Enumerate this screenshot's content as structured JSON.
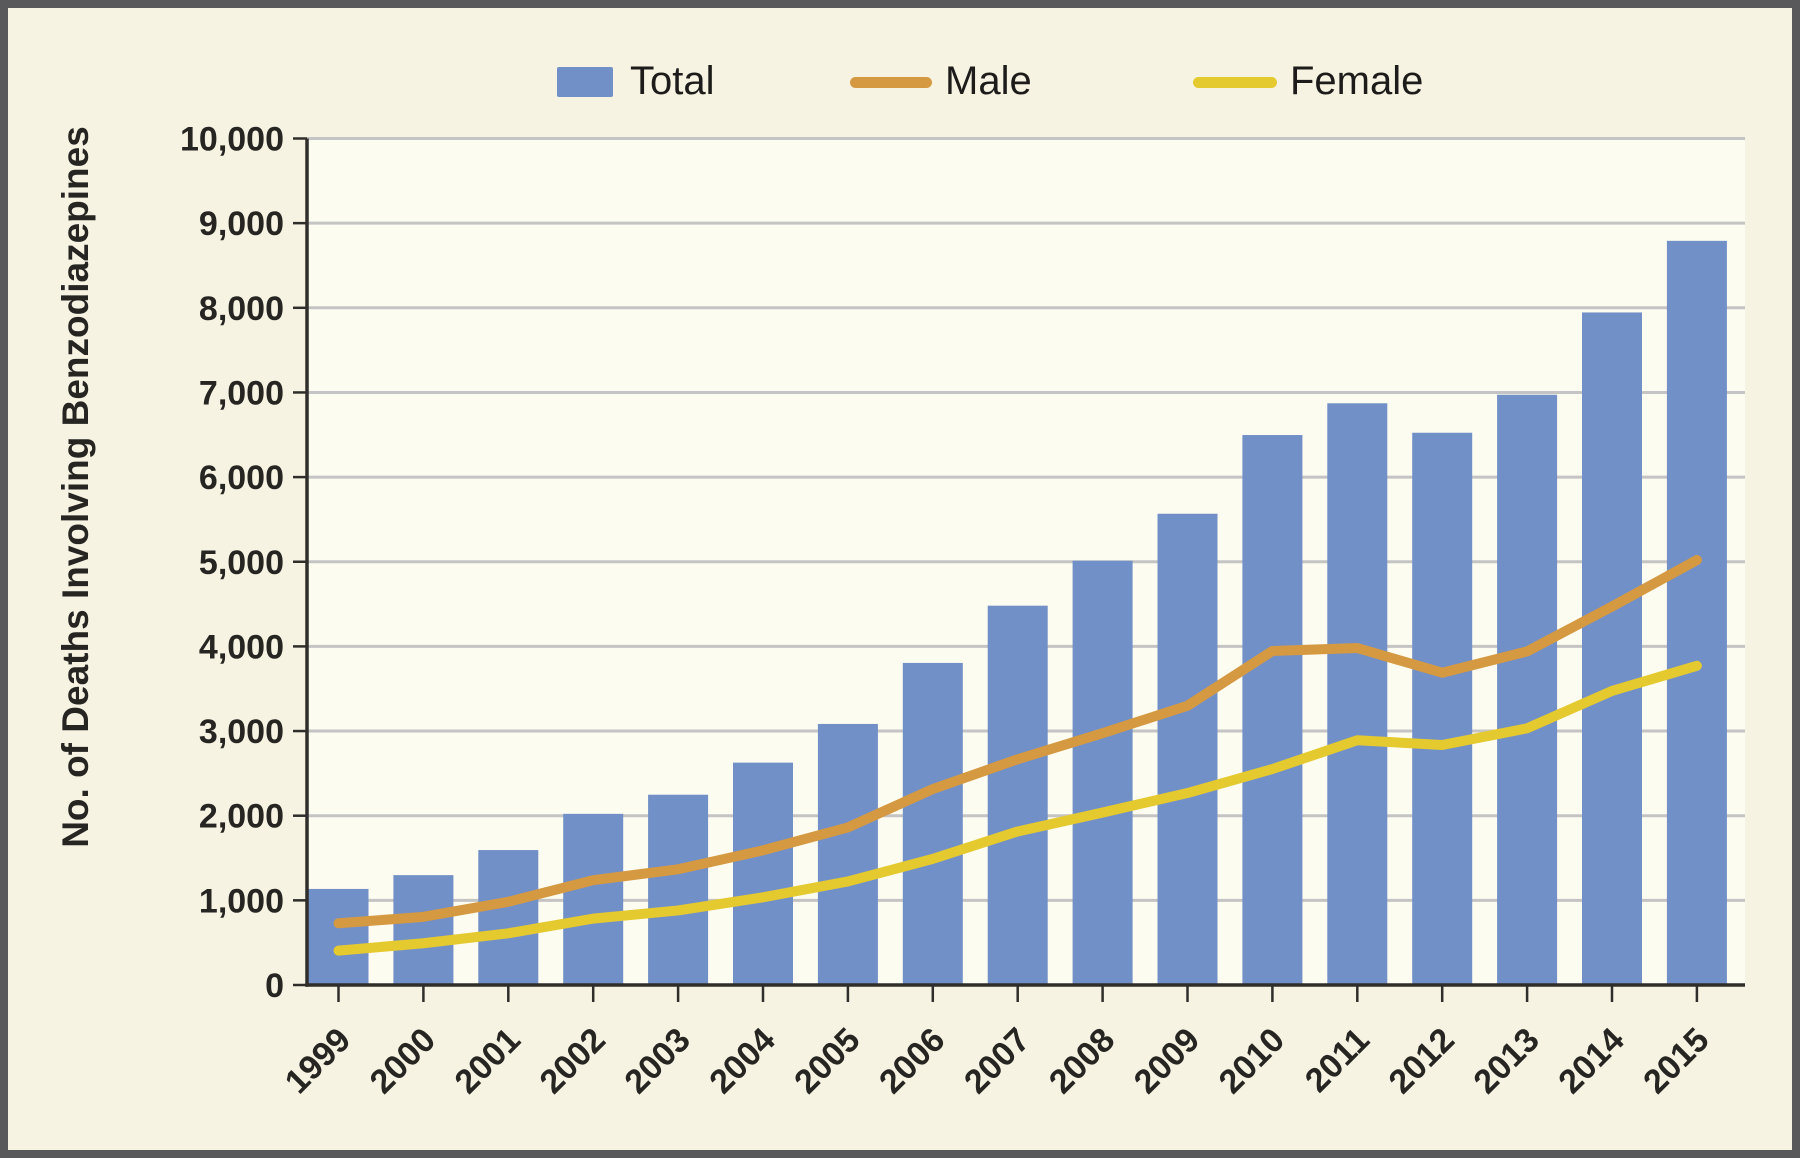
{
  "chart_data": {
    "type": "bar",
    "title": "",
    "xlabel": "",
    "ylabel": "No. of Deaths Involving Benzodiazepines",
    "ylim": [
      0,
      10000
    ],
    "grid": true,
    "legend_position": "top",
    "categories": [
      "1999",
      "2000",
      "2001",
      "2002",
      "2003",
      "2004",
      "2005",
      "2006",
      "2007",
      "2008",
      "2009",
      "2010",
      "2011",
      "2012",
      "2013",
      "2014",
      "2015"
    ],
    "yticks": [
      "0",
      "1,000",
      "2,000",
      "3,000",
      "4,000",
      "5,000",
      "6,000",
      "7,000",
      "8,000",
      "9,000",
      "10,000"
    ],
    "bars": {
      "name": "Total",
      "color": "#7190c8",
      "values": [
        1135,
        1298,
        1594,
        2022,
        2248,
        2627,
        3084,
        3805,
        4481,
        5012,
        5567,
        6497,
        6872,
        6524,
        6973,
        7945,
        8791
      ]
    },
    "lines": [
      {
        "name": "Male",
        "color": "#d59942",
        "values": [
          729,
          805,
          983,
          1238,
          1367,
          1591,
          1861,
          2315,
          2667,
          2975,
          3299,
          3946,
          3981,
          3689,
          3941,
          4471,
          5020
        ]
      },
      {
        "name": "Female",
        "color": "#e4c92f",
        "values": [
          406,
          493,
          611,
          784,
          881,
          1036,
          1223,
          1490,
          1814,
          2037,
          2268,
          2551,
          2891,
          2835,
          3032,
          3474,
          3771
        ]
      }
    ]
  },
  "colors": {
    "background": "#f6f3e2",
    "plot_background": "#fdfcf0",
    "gridline": "#c4c4c4",
    "axis": "#2f2e2a",
    "text": "#262522",
    "frame_border": "#59595b",
    "bar_blue": "#7190c8",
    "male_orange": "#d59942",
    "female_yellow": "#e4c92f"
  }
}
